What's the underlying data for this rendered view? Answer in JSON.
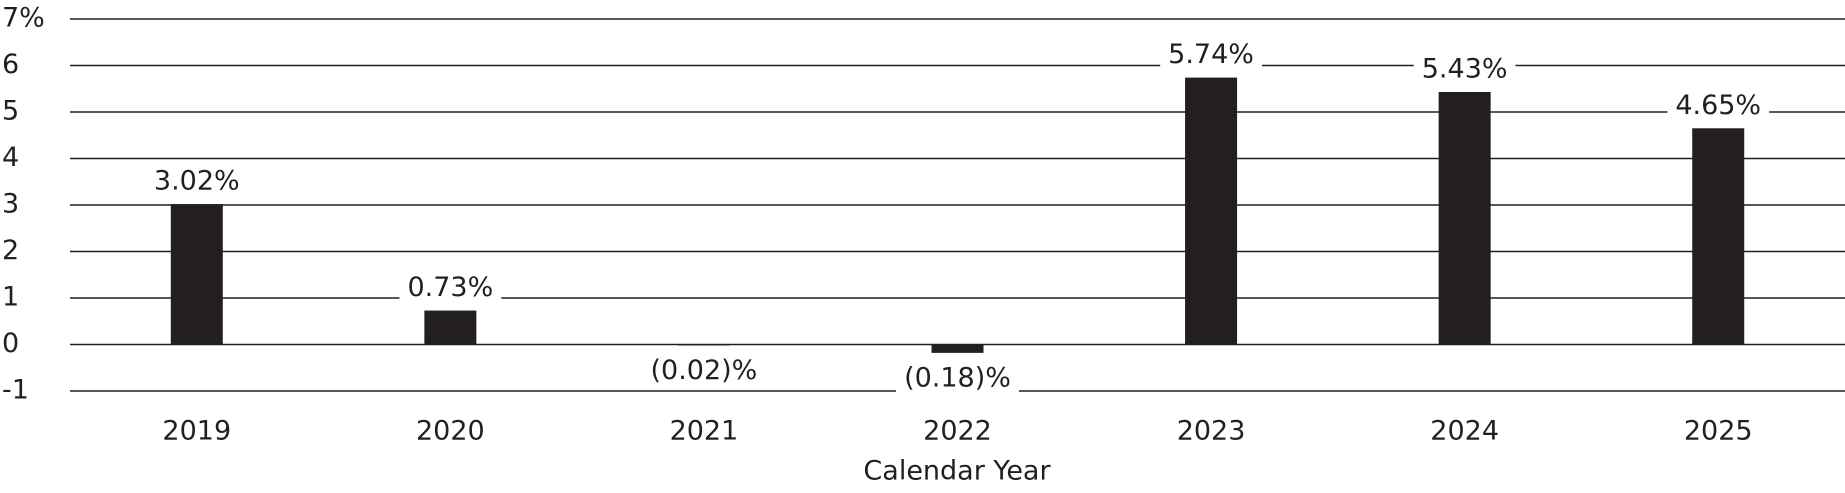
{
  "chart_data": {
    "type": "bar",
    "x_label": "Calendar Year",
    "categories": [
      "2019",
      "2020",
      "2021",
      "2022",
      "2023",
      "2024",
      "2025"
    ],
    "values": [
      3.02,
      0.73,
      -0.02,
      -0.18,
      5.74,
      5.43,
      4.65
    ],
    "value_labels": [
      "3.02%",
      "0.73%",
      "(0.02)%",
      "(0.18)%",
      "5.74%",
      "5.43%",
      "4.65%"
    ],
    "color": "#231f20",
    "ylim": [
      -1,
      7
    ],
    "yticks": [
      -1,
      0,
      1,
      2,
      3,
      4,
      5,
      6,
      {
        "value": 7,
        "label": "7%"
      }
    ],
    "grid": true
  }
}
